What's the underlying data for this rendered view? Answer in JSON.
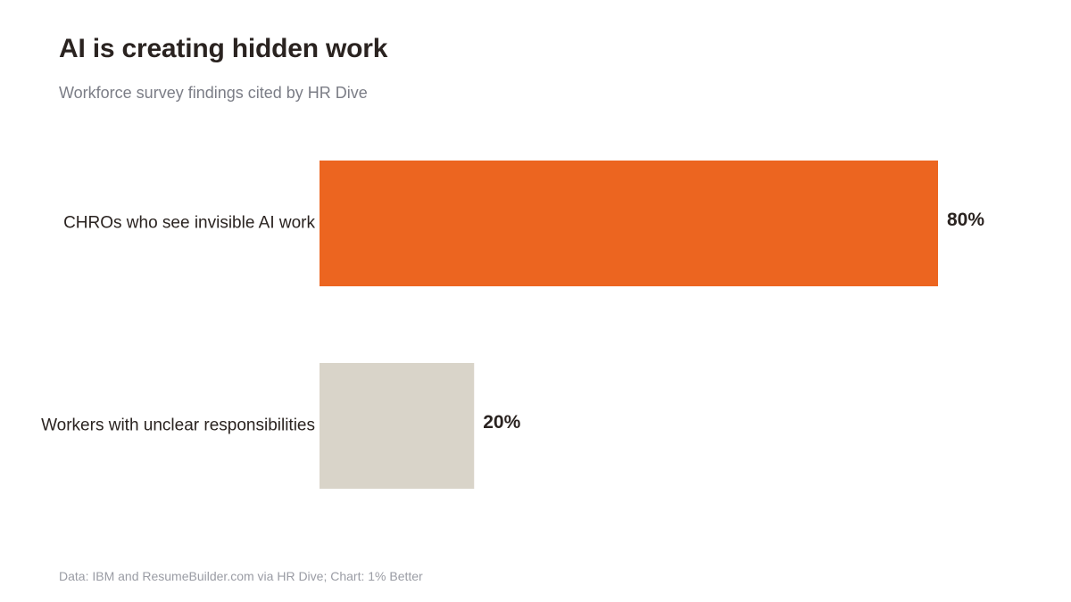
{
  "title": "AI is creating hidden work",
  "subtitle": "Workforce survey findings cited by HR Dive",
  "source": "Data: IBM and ResumeBuilder.com via HR Dive; Chart: 1% Better",
  "colors": {
    "highlight": "#ec6520",
    "muted": "#d9d4c9",
    "text": "#2a2320"
  },
  "chart_data": {
    "type": "bar",
    "orientation": "horizontal",
    "categories": [
      "CHROs who see invisible AI work",
      "Workers with unclear responsibilities"
    ],
    "values": [
      80,
      20
    ],
    "value_labels": [
      "80%",
      "20%"
    ],
    "bar_colors": [
      "#ec6520",
      "#d9d4c9"
    ],
    "xlim": [
      0,
      80
    ],
    "grid": false,
    "legend": "none"
  }
}
